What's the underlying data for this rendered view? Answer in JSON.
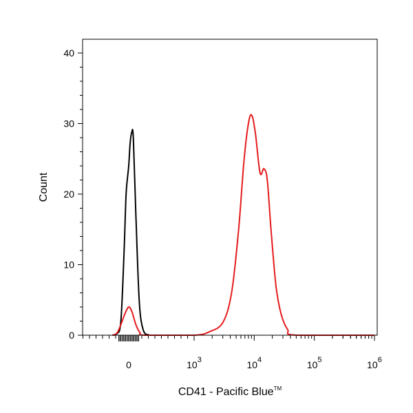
{
  "chart_data": {
    "type": "line",
    "title": "",
    "xlabel": "CD41 - Pacific Blue",
    "xlabel_tm": "TM",
    "ylabel": "Count",
    "x_scale": "biexponential",
    "ylim": [
      0,
      40
    ],
    "yticks": [
      {
        "value": 0,
        "label": "0"
      },
      {
        "value": 10,
        "label": "10"
      },
      {
        "value": 20,
        "label": "20"
      },
      {
        "value": 30,
        "label": "30"
      },
      {
        "value": 40,
        "label": "40"
      }
    ],
    "xticks": [
      {
        "value": 0,
        "label": "0",
        "exp": ""
      },
      {
        "value": 1000,
        "label": "10",
        "exp": "3"
      },
      {
        "value": 10000,
        "label": "10",
        "exp": "4"
      },
      {
        "value": 100000,
        "label": "10",
        "exp": "5"
      },
      {
        "value": 1000000,
        "label": "10",
        "exp": "6"
      }
    ],
    "grid": false,
    "legend": "none",
    "series": [
      {
        "color": "#000000",
        "points": [
          [
            -250,
            0
          ],
          [
            -180,
            0.2
          ],
          [
            -120,
            2
          ],
          [
            -70,
            12
          ],
          [
            -40,
            20
          ],
          [
            0,
            24
          ],
          [
            20,
            27
          ],
          [
            45,
            28.7
          ],
          [
            70,
            28
          ],
          [
            110,
            17
          ],
          [
            160,
            5
          ],
          [
            220,
            0.8
          ],
          [
            320,
            0
          ],
          [
            500,
            0
          ]
        ]
      },
      {
        "color": "#e41a1c",
        "points": [
          [
            -250,
            0
          ],
          [
            -180,
            0.3
          ],
          [
            -120,
            1.5
          ],
          [
            -60,
            3
          ],
          [
            0,
            4
          ],
          [
            50,
            3.3
          ],
          [
            110,
            1.5
          ],
          [
            170,
            0.4
          ],
          [
            250,
            0
          ],
          [
            1000,
            0
          ],
          [
            1800,
            0.5
          ],
          [
            3000,
            1.8
          ],
          [
            4200,
            6
          ],
          [
            5500,
            15
          ],
          [
            6800,
            25
          ],
          [
            8200,
            30.5
          ],
          [
            9300,
            31
          ],
          [
            10500,
            28.5
          ],
          [
            12500,
            23
          ],
          [
            14500,
            23.6
          ],
          [
            16500,
            22
          ],
          [
            19000,
            15
          ],
          [
            23000,
            7
          ],
          [
            28000,
            3
          ],
          [
            36000,
            0.8
          ],
          [
            50000,
            0
          ],
          [
            1000000,
            0
          ]
        ]
      }
    ]
  }
}
